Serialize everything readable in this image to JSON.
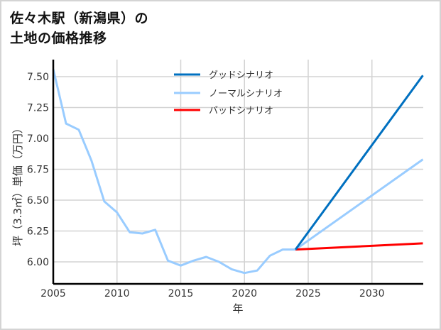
{
  "title": {
    "line1": "佐々木駅（新潟県）の",
    "line2": "土地の価格推移"
  },
  "axes": {
    "xlabel": "年",
    "ylabel": "坪（3.3㎡）単価（万円）",
    "xticks": [
      "2005",
      "2010",
      "2015",
      "2020",
      "2025",
      "2030"
    ],
    "yticks": [
      "7.50",
      "7.25",
      "7.00",
      "6.75",
      "6.50",
      "6.25",
      "6.00"
    ]
  },
  "legend": [
    {
      "label": "グッドシナリオ",
      "color": "#0070c0"
    },
    {
      "label": "ノーマルシナリオ",
      "color": "#99ccff"
    },
    {
      "label": "バッドシナリオ",
      "color": "#ff0000"
    }
  ],
  "chart_data": {
    "type": "line",
    "title": "佐々木駅（新潟県）の土地の価格推移",
    "xlabel": "年",
    "ylabel": "坪（3.3㎡）単価（万円）",
    "xlim": [
      2005,
      2034
    ],
    "ylim": [
      5.83,
      7.6
    ],
    "grid": true,
    "legend_position": "upper center",
    "x": [
      2005,
      2006,
      2007,
      2008,
      2009,
      2010,
      2011,
      2012,
      2013,
      2014,
      2015,
      2016,
      2017,
      2018,
      2019,
      2020,
      2021,
      2022,
      2023,
      2024
    ],
    "series": [
      {
        "name": "ノーマルシナリオ (実績)",
        "color": "#99ccff",
        "x": [
          2005,
          2006,
          2007,
          2008,
          2009,
          2010,
          2011,
          2012,
          2013,
          2014,
          2015,
          2016,
          2017,
          2018,
          2019,
          2020,
          2021,
          2022,
          2023,
          2024
        ],
        "values": [
          7.56,
          7.12,
          7.07,
          6.82,
          6.49,
          6.4,
          6.24,
          6.23,
          6.26,
          6.01,
          5.97,
          6.01,
          6.04,
          6.0,
          5.94,
          5.91,
          5.93,
          6.05,
          6.1,
          6.1
        ]
      },
      {
        "name": "グッドシナリオ",
        "color": "#0070c0",
        "x": [
          2024,
          2034
        ],
        "values": [
          6.1,
          7.51
        ]
      },
      {
        "name": "ノーマルシナリオ",
        "color": "#99ccff",
        "x": [
          2024,
          2034
        ],
        "values": [
          6.1,
          6.83
        ]
      },
      {
        "name": "バッドシナリオ",
        "color": "#ff0000",
        "x": [
          2024,
          2034
        ],
        "values": [
          6.1,
          6.15
        ]
      }
    ]
  }
}
